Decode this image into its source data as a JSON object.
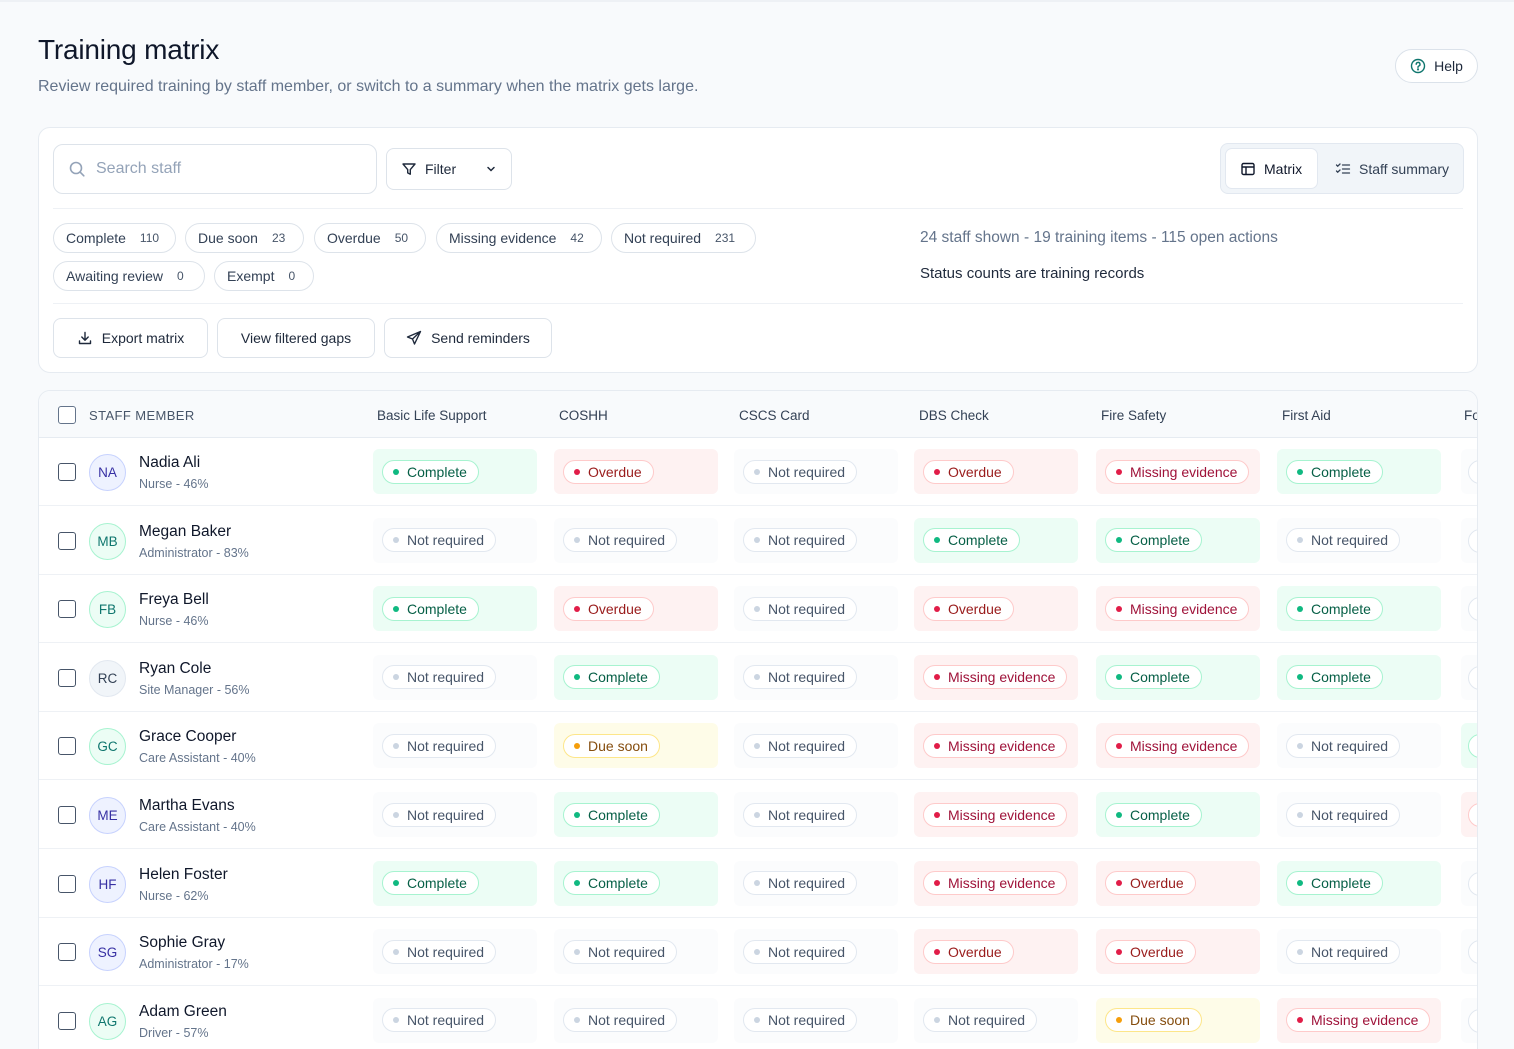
{
  "header": {
    "title": "Training matrix",
    "subtitle": "Review required training by staff member, or switch to a summary when the matrix gets large.",
    "help_label": "Help"
  },
  "toolbar": {
    "search_placeholder": "Search staff",
    "filter_label": "Filter",
    "view_matrix_label": "Matrix",
    "view_summary_label": "Staff summary",
    "status_chips": [
      {
        "label": "Complete",
        "count": "110"
      },
      {
        "label": "Due soon",
        "count": "23"
      },
      {
        "label": "Overdue",
        "count": "50"
      },
      {
        "label": "Missing evidence",
        "count": "42"
      },
      {
        "label": "Not required",
        "count": "231"
      },
      {
        "label": "Awaiting review",
        "count": "0"
      },
      {
        "label": "Exempt",
        "count": "0"
      }
    ],
    "summary_line": "24 staff shown - 19 training items - 115 open actions",
    "summary_note": "Status counts are training records",
    "export_label": "Export matrix",
    "gaps_label": "View filtered gaps",
    "reminders_label": "Send reminders"
  },
  "table": {
    "staff_header": "STAFF MEMBER",
    "columns": [
      "Basic Life Support",
      "COSHH",
      "CSCS Card",
      "DBS Check",
      "Fire Safety",
      "First Aid",
      "Fo"
    ],
    "status_labels": {
      "complete": "Complete",
      "overdue": "Overdue",
      "missing": "Missing evidence",
      "due": "Due soon",
      "notreq": "Not required"
    },
    "rows": [
      {
        "initials": "NA",
        "name": "Nadia Ali",
        "meta": "Nurse - 46%",
        "statuses": [
          "complete",
          "overdue",
          "notreq",
          "overdue",
          "missing",
          "complete"
        ],
        "edge": "notreq"
      },
      {
        "initials": "MB",
        "name": "Megan Baker",
        "meta": "Administrator - 83%",
        "statuses": [
          "notreq",
          "notreq",
          "notreq",
          "complete",
          "complete",
          "notreq"
        ],
        "edge": "notreq"
      },
      {
        "initials": "FB",
        "name": "Freya Bell",
        "meta": "Nurse - 46%",
        "statuses": [
          "complete",
          "overdue",
          "notreq",
          "overdue",
          "missing",
          "complete"
        ],
        "edge": "notreq"
      },
      {
        "initials": "RC",
        "name": "Ryan Cole",
        "meta": "Site Manager - 56%",
        "statuses": [
          "notreq",
          "complete",
          "notreq",
          "missing",
          "complete",
          "complete"
        ],
        "edge": "notreq"
      },
      {
        "initials": "GC",
        "name": "Grace Cooper",
        "meta": "Care Assistant - 40%",
        "statuses": [
          "notreq",
          "due",
          "notreq",
          "missing",
          "missing",
          "notreq"
        ],
        "edge": "complete"
      },
      {
        "initials": "ME",
        "name": "Martha Evans",
        "meta": "Care Assistant - 40%",
        "statuses": [
          "notreq",
          "complete",
          "notreq",
          "missing",
          "complete",
          "notreq"
        ],
        "edge": "overdue"
      },
      {
        "initials": "HF",
        "name": "Helen Foster",
        "meta": "Nurse - 62%",
        "statuses": [
          "complete",
          "complete",
          "notreq",
          "missing",
          "overdue",
          "complete"
        ],
        "edge": "notreq"
      },
      {
        "initials": "SG",
        "name": "Sophie Gray",
        "meta": "Administrator - 17%",
        "statuses": [
          "notreq",
          "notreq",
          "notreq",
          "overdue",
          "overdue",
          "notreq"
        ],
        "edge": "notreq"
      },
      {
        "initials": "AG",
        "name": "Adam Green",
        "meta": "Driver - 57%",
        "statuses": [
          "notreq",
          "notreq",
          "notreq",
          "notreq",
          "due",
          "missing"
        ],
        "edge": "notreq"
      }
    ]
  },
  "colors": {
    "complete": "#10b981",
    "overdue": "#e11d48",
    "due_soon": "#f59e0b",
    "not_required": "#cbd5e1",
    "avatar_blue_bg": "#eef2ff",
    "avatar_blue_fg": "#3730a3",
    "avatar_teal_bg": "#ecfdf5",
    "avatar_teal_fg": "#0f766e",
    "avatar_gray_bg": "#f1f5f9",
    "avatar_gray_fg": "#334155"
  }
}
